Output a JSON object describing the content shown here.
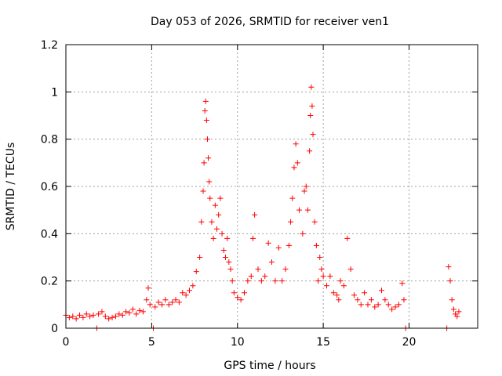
{
  "chart_data": {
    "type": "scatter",
    "title": "Day 053 of 2026, SRMTID for receiver ven1",
    "xlabel": "GPS time / hours",
    "ylabel": "SRMTID / TECUs",
    "xlim": [
      0,
      24
    ],
    "ylim": [
      0,
      1.2
    ],
    "x_ticks": [
      0,
      5,
      10,
      15,
      20
    ],
    "y_ticks": [
      0,
      0.2,
      0.4,
      0.6,
      0.8,
      1,
      1.2
    ],
    "x_tick_labels": [
      "0",
      "5",
      "10",
      "15",
      "20"
    ],
    "y_tick_labels": [
      "0",
      "0.2",
      "0.4",
      "0.6",
      "0.8",
      "1",
      "1.2"
    ],
    "grid": true,
    "marker": "+",
    "series": [
      {
        "name": "SRMTID",
        "color": "#ff0000",
        "points": [
          [
            0.0,
            0.055
          ],
          [
            0.2,
            0.045
          ],
          [
            0.4,
            0.05
          ],
          [
            0.6,
            0.04
          ],
          [
            0.8,
            0.055
          ],
          [
            1.0,
            0.045
          ],
          [
            1.2,
            0.06
          ],
          [
            1.4,
            0.05
          ],
          [
            1.6,
            0.055
          ],
          [
            1.8,
            0.0
          ],
          [
            1.9,
            0.06
          ],
          [
            2.1,
            0.07
          ],
          [
            2.3,
            0.05
          ],
          [
            2.5,
            0.04
          ],
          [
            2.7,
            0.045
          ],
          [
            2.9,
            0.05
          ],
          [
            3.1,
            0.06
          ],
          [
            3.3,
            0.055
          ],
          [
            3.5,
            0.07
          ],
          [
            3.7,
            0.065
          ],
          [
            3.9,
            0.08
          ],
          [
            4.1,
            0.06
          ],
          [
            4.3,
            0.075
          ],
          [
            4.5,
            0.07
          ],
          [
            4.7,
            0.12
          ],
          [
            4.8,
            0.17
          ],
          [
            4.9,
            0.1
          ],
          [
            5.1,
            0.0
          ],
          [
            5.2,
            0.09
          ],
          [
            5.4,
            0.11
          ],
          [
            5.6,
            0.1
          ],
          [
            5.8,
            0.12
          ],
          [
            6.0,
            0.1
          ],
          [
            6.2,
            0.11
          ],
          [
            6.4,
            0.12
          ],
          [
            6.6,
            0.11
          ],
          [
            6.8,
            0.15
          ],
          [
            7.0,
            0.14
          ],
          [
            7.2,
            0.16
          ],
          [
            7.4,
            0.18
          ],
          [
            7.6,
            0.24
          ],
          [
            7.8,
            0.3
          ],
          [
            7.9,
            0.45
          ],
          [
            8.0,
            0.58
          ],
          [
            8.05,
            0.7
          ],
          [
            8.1,
            0.92
          ],
          [
            8.15,
            0.96
          ],
          [
            8.2,
            0.88
          ],
          [
            8.25,
            0.8
          ],
          [
            8.3,
            0.72
          ],
          [
            8.35,
            0.62
          ],
          [
            8.4,
            0.55
          ],
          [
            8.5,
            0.45
          ],
          [
            8.6,
            0.38
          ],
          [
            8.7,
            0.52
          ],
          [
            8.8,
            0.42
          ],
          [
            8.9,
            0.48
          ],
          [
            9.0,
            0.55
          ],
          [
            9.1,
            0.4
          ],
          [
            9.2,
            0.33
          ],
          [
            9.3,
            0.3
          ],
          [
            9.4,
            0.38
          ],
          [
            9.5,
            0.28
          ],
          [
            9.6,
            0.25
          ],
          [
            9.7,
            0.2
          ],
          [
            9.8,
            0.15
          ],
          [
            10.0,
            0.13
          ],
          [
            10.2,
            0.12
          ],
          [
            10.4,
            0.15
          ],
          [
            10.6,
            0.2
          ],
          [
            10.8,
            0.22
          ],
          [
            10.9,
            0.38
          ],
          [
            11.0,
            0.48
          ],
          [
            11.2,
            0.25
          ],
          [
            11.4,
            0.2
          ],
          [
            11.6,
            0.22
          ],
          [
            11.8,
            0.36
          ],
          [
            12.0,
            0.28
          ],
          [
            12.2,
            0.2
          ],
          [
            12.4,
            0.34
          ],
          [
            12.6,
            0.2
          ],
          [
            12.8,
            0.25
          ],
          [
            13.0,
            0.35
          ],
          [
            13.1,
            0.45
          ],
          [
            13.2,
            0.55
          ],
          [
            13.3,
            0.68
          ],
          [
            13.4,
            0.78
          ],
          [
            13.5,
            0.7
          ],
          [
            13.6,
            0.5
          ],
          [
            13.8,
            0.4
          ],
          [
            13.9,
            0.58
          ],
          [
            14.0,
            0.6
          ],
          [
            14.1,
            0.5
          ],
          [
            14.2,
            0.75
          ],
          [
            14.25,
            0.9
          ],
          [
            14.3,
            1.02
          ],
          [
            14.35,
            0.94
          ],
          [
            14.4,
            0.82
          ],
          [
            14.5,
            0.45
          ],
          [
            14.6,
            0.35
          ],
          [
            14.7,
            0.2
          ],
          [
            14.8,
            0.3
          ],
          [
            14.9,
            0.25
          ],
          [
            15.0,
            0.22
          ],
          [
            15.2,
            0.18
          ],
          [
            15.4,
            0.22
          ],
          [
            15.6,
            0.15
          ],
          [
            15.8,
            0.14
          ],
          [
            15.9,
            0.12
          ],
          [
            16.0,
            0.2
          ],
          [
            16.2,
            0.18
          ],
          [
            16.4,
            0.38
          ],
          [
            16.6,
            0.25
          ],
          [
            16.8,
            0.14
          ],
          [
            17.0,
            0.12
          ],
          [
            17.2,
            0.1
          ],
          [
            17.4,
            0.15
          ],
          [
            17.6,
            0.1
          ],
          [
            17.8,
            0.12
          ],
          [
            18.0,
            0.09
          ],
          [
            18.2,
            0.1
          ],
          [
            18.4,
            0.16
          ],
          [
            18.6,
            0.12
          ],
          [
            18.8,
            0.1
          ],
          [
            19.0,
            0.08
          ],
          [
            19.2,
            0.09
          ],
          [
            19.4,
            0.1
          ],
          [
            19.6,
            0.19
          ],
          [
            19.7,
            0.12
          ],
          [
            19.8,
            0.0
          ],
          [
            22.2,
            0.0
          ],
          [
            22.3,
            0.26
          ],
          [
            22.4,
            0.2
          ],
          [
            22.5,
            0.12
          ],
          [
            22.6,
            0.08
          ],
          [
            22.7,
            0.06
          ],
          [
            22.8,
            0.05
          ],
          [
            22.9,
            0.07
          ]
        ]
      }
    ]
  }
}
